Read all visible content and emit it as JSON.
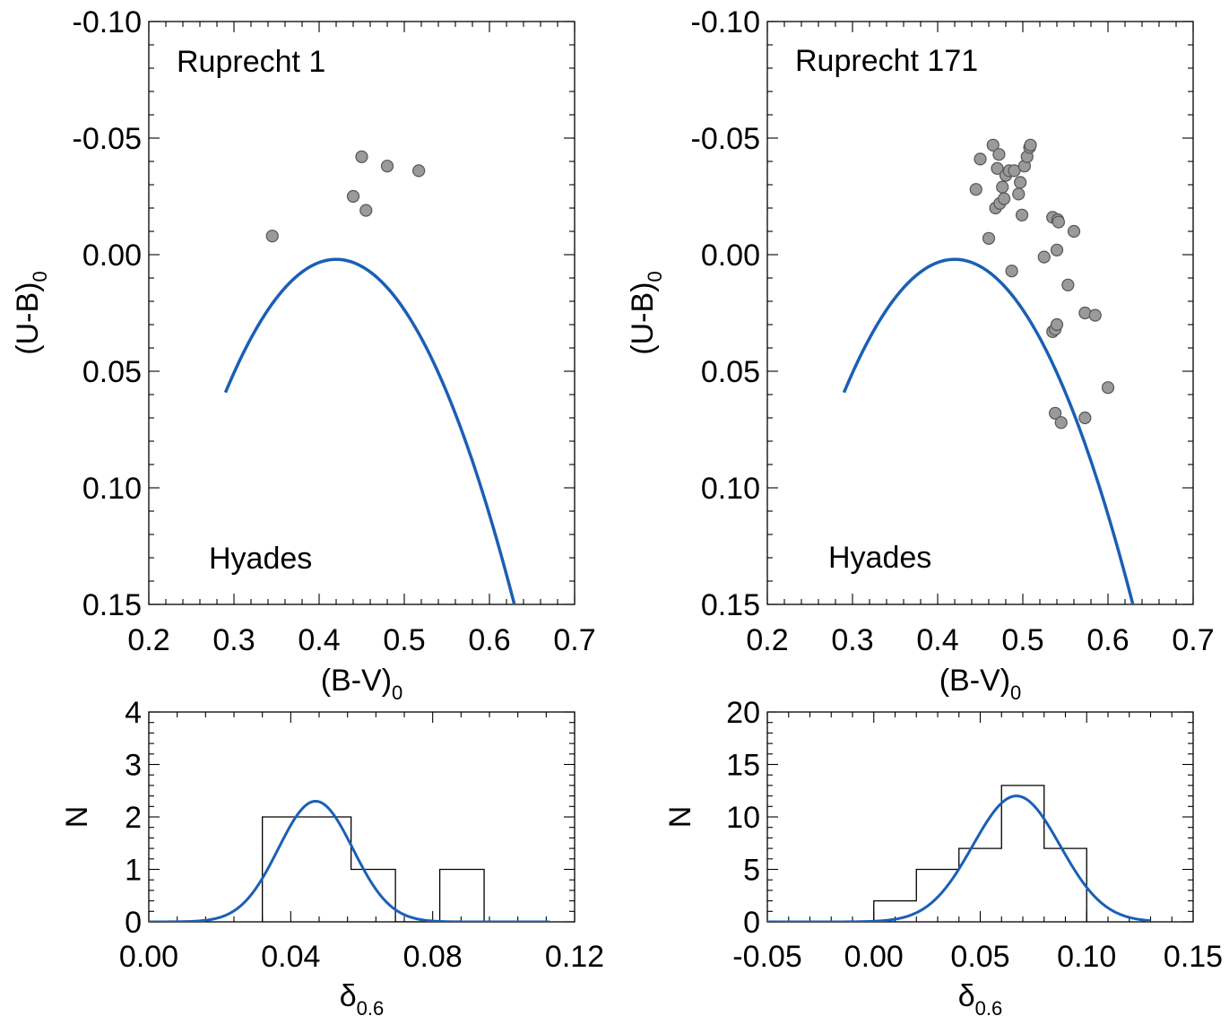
{
  "colors": {
    "fit": "#1a5fb4",
    "points": "#9a9a9a",
    "axis": "#000000"
  },
  "chart_data": [
    {
      "id": "ccd-ruprecht-1",
      "type": "scatter",
      "title": "Ruprecht 1",
      "xlabel": "(B-V)",
      "xlabel_sub": "0",
      "ylabel": "(U-B)",
      "ylabel_sub": "0",
      "xlim": [
        0.2,
        0.7
      ],
      "ylim": [
        0.15,
        -0.1
      ],
      "y_inverted": true,
      "xticks": [
        0.2,
        0.3,
        0.4,
        0.5,
        0.6,
        0.7
      ],
      "xtick_labels": [
        "0.2",
        "0.3",
        "0.4",
        "0.5",
        "0.6",
        "0.7"
      ],
      "yticks": [
        -0.1,
        -0.05,
        0.0,
        0.05,
        0.1,
        0.15
      ],
      "ytick_labels": [
        "-0.10",
        "-0.05",
        "0.00",
        "0.05",
        "0.10",
        "0.15"
      ],
      "curve": {
        "name": "Hyades",
        "label": "Hyades",
        "x_range": [
          0.29,
          0.63
        ],
        "vertex": [
          0.42,
          0.002
        ],
        "a": 3.38
      },
      "points": [
        [
          0.345,
          -0.008
        ],
        [
          0.44,
          -0.025
        ],
        [
          0.45,
          -0.042
        ],
        [
          0.455,
          -0.019
        ],
        [
          0.48,
          -0.038
        ],
        [
          0.517,
          -0.036
        ]
      ]
    },
    {
      "id": "ccd-ruprecht-171",
      "type": "scatter",
      "title": "Ruprecht 171",
      "xlabel": "(B-V)",
      "xlabel_sub": "0",
      "ylabel": "(U-B)",
      "ylabel_sub": "0",
      "xlim": [
        0.2,
        0.7
      ],
      "ylim": [
        0.15,
        -0.1
      ],
      "y_inverted": true,
      "xticks": [
        0.2,
        0.3,
        0.4,
        0.5,
        0.6,
        0.7
      ],
      "xtick_labels": [
        "0.2",
        "0.3",
        "0.4",
        "0.5",
        "0.6",
        "0.7"
      ],
      "yticks": [
        -0.1,
        -0.05,
        0.0,
        0.05,
        0.1,
        0.15
      ],
      "ytick_labels": [
        "-0.10",
        "-0.05",
        "0.00",
        "0.05",
        "0.10",
        "0.15"
      ],
      "curve": {
        "name": "Hyades",
        "label": "Hyades",
        "x_range": [
          0.29,
          0.63
        ],
        "vertex": [
          0.42,
          0.002
        ],
        "a": 3.38
      },
      "points": [
        [
          0.445,
          -0.028
        ],
        [
          0.45,
          -0.041
        ],
        [
          0.46,
          -0.007
        ],
        [
          0.465,
          -0.047
        ],
        [
          0.468,
          -0.02
        ],
        [
          0.47,
          -0.037
        ],
        [
          0.472,
          -0.043
        ],
        [
          0.473,
          -0.022
        ],
        [
          0.476,
          -0.029
        ],
        [
          0.478,
          -0.024
        ],
        [
          0.48,
          -0.034
        ],
        [
          0.484,
          -0.036
        ],
        [
          0.487,
          0.007
        ],
        [
          0.49,
          -0.036
        ],
        [
          0.495,
          -0.026
        ],
        [
          0.497,
          -0.031
        ],
        [
          0.499,
          -0.017
        ],
        [
          0.502,
          -0.038
        ],
        [
          0.505,
          -0.042
        ],
        [
          0.508,
          -0.046
        ],
        [
          0.509,
          -0.047
        ],
        [
          0.525,
          0.001
        ],
        [
          0.535,
          -0.016
        ],
        [
          0.535,
          0.033
        ],
        [
          0.538,
          0.032
        ],
        [
          0.538,
          0.068
        ],
        [
          0.54,
          -0.002
        ],
        [
          0.54,
          0.03
        ],
        [
          0.541,
          -0.015
        ],
        [
          0.542,
          -0.014
        ],
        [
          0.545,
          0.072
        ],
        [
          0.553,
          0.013
        ],
        [
          0.56,
          -0.01
        ],
        [
          0.573,
          0.025
        ],
        [
          0.573,
          0.07
        ],
        [
          0.585,
          0.026
        ],
        [
          0.6,
          0.057
        ]
      ]
    },
    {
      "id": "hist-ruprecht-1",
      "type": "bar",
      "title": "",
      "xlabel": "δ",
      "xlabel_sub": "0.6",
      "ylabel": "N",
      "xlim": [
        0.0,
        0.12
      ],
      "ylim": [
        0,
        4
      ],
      "xticks": [
        0.0,
        0.04,
        0.08,
        0.12
      ],
      "xtick_labels": [
        "0.00",
        "0.04",
        "0.08",
        "0.12"
      ],
      "yticks": [
        0,
        1,
        2,
        3,
        4
      ],
      "ytick_labels": [
        "0",
        "1",
        "2",
        "3",
        "4"
      ],
      "bin_edges": [
        0.032,
        0.0445,
        0.057,
        0.0695,
        0.082,
        0.0945
      ],
      "counts": [
        2,
        2,
        1,
        0,
        1
      ],
      "gaussian": {
        "amplitude": 2.3,
        "mean": 0.047,
        "sigma": 0.0105,
        "x_range": [
          0.0,
          0.113
        ]
      }
    },
    {
      "id": "hist-ruprecht-171",
      "type": "bar",
      "title": "",
      "xlabel": "δ",
      "xlabel_sub": "0.6",
      "ylabel": "N",
      "xlim": [
        -0.05,
        0.15
      ],
      "ylim": [
        0,
        20
      ],
      "xticks": [
        -0.05,
        0.0,
        0.05,
        0.1,
        0.15
      ],
      "xtick_labels": [
        "-0.05",
        "0.00",
        "0.05",
        "0.10",
        "0.15"
      ],
      "yticks": [
        0,
        5,
        10,
        15,
        20
      ],
      "ytick_labels": [
        "0",
        "5",
        "10",
        "15",
        "20"
      ],
      "bin_edges": [
        0.0,
        0.02,
        0.04,
        0.06,
        0.08,
        0.1
      ],
      "counts": [
        2,
        5,
        7,
        13,
        7
      ],
      "gaussian": {
        "amplitude": 12.0,
        "mean": 0.067,
        "sigma": 0.0205,
        "x_range": [
          -0.05,
          0.13
        ]
      }
    }
  ]
}
